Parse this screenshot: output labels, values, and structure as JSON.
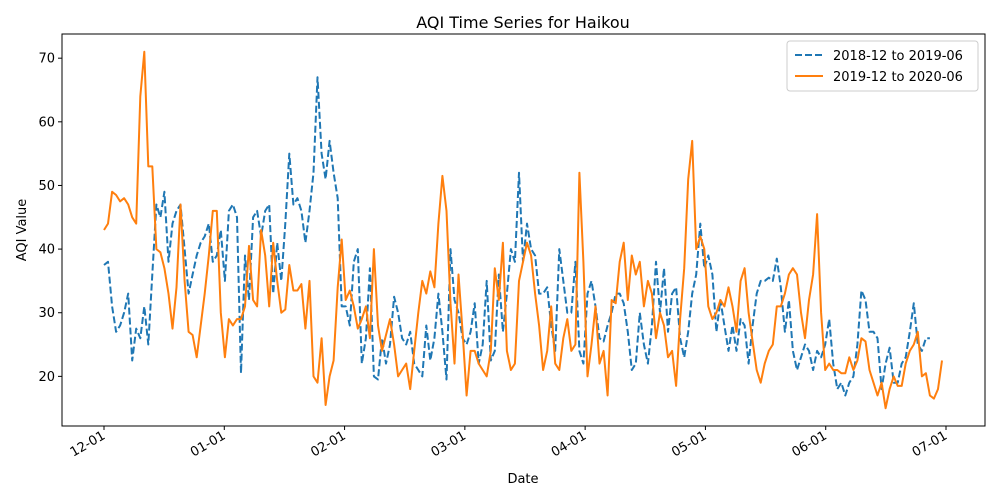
{
  "chart_data": {
    "type": "line",
    "title": "AQI Time Series for Haikou",
    "xlabel": "Date",
    "ylabel": "AQI Value",
    "x_tick_labels": [
      "12-01",
      "01-01",
      "02-01",
      "03-01",
      "04-01",
      "05-01",
      "06-01",
      "07-01"
    ],
    "y_ticks": [
      20,
      30,
      40,
      50,
      60,
      70
    ],
    "ylim": [
      12.2,
      73.8
    ],
    "grid": false,
    "legend_position": "upper right",
    "series": [
      {
        "name": "2018-12 to 2019-06",
        "color": "#1f77b4",
        "linestyle": "dashed",
        "start_date": "12-01",
        "values": [
          37.5,
          38.0,
          31.0,
          27.0,
          28.0,
          30.0,
          33.0,
          22.5,
          27.5,
          26.0,
          31.0,
          25.0,
          36.0,
          47.0,
          45.0,
          49.0,
          38.0,
          44.0,
          46.0,
          47.0,
          40.0,
          33.0,
          36.0,
          39.0,
          41.0,
          42.0,
          44.0,
          38.0,
          39.0,
          43.0,
          35.0,
          46.0,
          47.0,
          45.0,
          20.5,
          39.0,
          32.0,
          45.0,
          46.0,
          42.0,
          46.0,
          47.0,
          33.0,
          41.0,
          35.0,
          44.0,
          55.0,
          47.0,
          48.0,
          46.0,
          41.0,
          46.0,
          52.0,
          67.0,
          55.0,
          51.0,
          57.0,
          52.0,
          48.0,
          31.0,
          31.0,
          28.0,
          38.0,
          40.0,
          22.0,
          26.0,
          37.0,
          20.0,
          19.5,
          26.0,
          22.0,
          25.0,
          32.5,
          30.0,
          26.0,
          25.0,
          27.0,
          22.0,
          21.0,
          20.0,
          28.0,
          22.5,
          26.0,
          33.0,
          27.0,
          19.5,
          40.0,
          32.0,
          30.0,
          26.0,
          25.0,
          27.0,
          31.5,
          22.0,
          25.0,
          35.0,
          22.5,
          24.0,
          36.0,
          27.0,
          33.0,
          40.0,
          38.0,
          52.0,
          38.0,
          44.0,
          40.0,
          39.0,
          33.0,
          33.0,
          34.0,
          28.0,
          24.0,
          40.0,
          35.0,
          30.0,
          30.0,
          38.0,
          24.0,
          22.0,
          33.0,
          35.0,
          31.0,
          26.0,
          25.5,
          28.0,
          30.0,
          33.0,
          33.0,
          31.5,
          27.0,
          21.0,
          22.0,
          30.0,
          25.0,
          22.0,
          28.0,
          38.0,
          30.0,
          37.0,
          27.0,
          33.0,
          34.0,
          26.0,
          23.0,
          27.0,
          33.0,
          36.0,
          44.0,
          37.0,
          39.0,
          36.0,
          27.0,
          32.0,
          28.0,
          24.0,
          28.0,
          24.0,
          29.0,
          28.0,
          22.0,
          28.0,
          33.0,
          35.0,
          35.0,
          35.5,
          35.0,
          38.5,
          34.0,
          27.0,
          32.0,
          24.0,
          21.0,
          23.0,
          25.0,
          24.0,
          21.0,
          24.0,
          23.0,
          25.0,
          29.0,
          22.0,
          18.0,
          19.0,
          17.0,
          19.0,
          20.0,
          25.0,
          33.5,
          32.0,
          27.0,
          27.0,
          26.0,
          18.0,
          22.0,
          24.5,
          19.0,
          19.0,
          22.0,
          23.0,
          27.0,
          31.5,
          25.0,
          24.0,
          26.0,
          26.0
        ]
      },
      {
        "name": "2019-12 to 2020-06",
        "color": "#ff7f0e",
        "linestyle": "solid",
        "start_date": "12-01",
        "values": [
          43.0,
          44.0,
          49.0,
          48.5,
          47.5,
          48.0,
          47.0,
          45.0,
          44.0,
          64.0,
          71.0,
          53.0,
          53.0,
          40.0,
          39.5,
          37.0,
          33.0,
          27.5,
          34.0,
          47.0,
          35.0,
          27.0,
          26.5,
          23.0,
          28.0,
          33.0,
          39.0,
          46.0,
          46.0,
          30.0,
          23.0,
          29.0,
          28.0,
          29.0,
          29.0,
          31.0,
          40.5,
          32.0,
          31.0,
          43.0,
          39.0,
          31.0,
          41.0,
          35.0,
          30.0,
          30.5,
          37.5,
          33.5,
          33.5,
          34.5,
          27.5,
          35.0,
          20.0,
          19.0,
          26.0,
          15.5,
          20.0,
          22.5,
          34.0,
          41.5,
          32.0,
          33.5,
          31.0,
          27.5,
          29.0,
          31.0,
          26.0,
          40.0,
          28.0,
          24.0,
          26.5,
          29.0,
          25.0,
          20.0,
          21.0,
          22.0,
          18.0,
          24.0,
          30.0,
          35.0,
          33.0,
          36.5,
          34.0,
          44.0,
          51.5,
          46.0,
          31.5,
          22.0,
          36.0,
          27.0,
          17.0,
          24.0,
          24.0,
          22.0,
          21.0,
          20.0,
          24.0,
          37.0,
          32.0,
          41.0,
          24.0,
          21.0,
          22.0,
          35.0,
          38.0,
          41.0,
          39.0,
          33.0,
          28.0,
          21.0,
          24.0,
          31.0,
          22.0,
          21.0,
          26.0,
          29.0,
          24.0,
          25.0,
          52.0,
          38.0,
          20.0,
          25.0,
          31.0,
          22.0,
          24.0,
          17.0,
          32.0,
          31.5,
          38.0,
          41.0,
          32.0,
          39.0,
          36.0,
          38.0,
          31.0,
          35.0,
          33.0,
          26.0,
          30.0,
          28.0,
          23.0,
          24.0,
          18.5,
          29.0,
          37.0,
          51.0,
          57.0,
          40.0,
          42.0,
          40.0,
          31.0,
          29.0,
          30.0,
          32.0,
          31.0,
          34.0,
          31.0,
          27.0,
          35.0,
          37.0,
          30.0,
          25.5,
          21.0,
          19.0,
          22.0,
          24.0,
          25.0,
          31.0,
          31.0,
          33.0,
          36.0,
          37.0,
          36.0,
          30.0,
          26.0,
          32.0,
          36.0,
          45.5,
          30.0,
          21.0,
          22.0,
          21.0,
          21.0,
          20.5,
          20.5,
          23.0,
          21.0,
          22.5,
          26.0,
          25.5,
          21.0,
          19.0,
          17.0,
          19.0,
          15.0,
          18.0,
          20.0,
          18.5,
          18.5,
          22.0,
          24.0,
          25.0,
          27.0,
          20.0,
          20.5,
          17.0,
          16.5,
          18.0,
          22.5
        ]
      }
    ]
  }
}
